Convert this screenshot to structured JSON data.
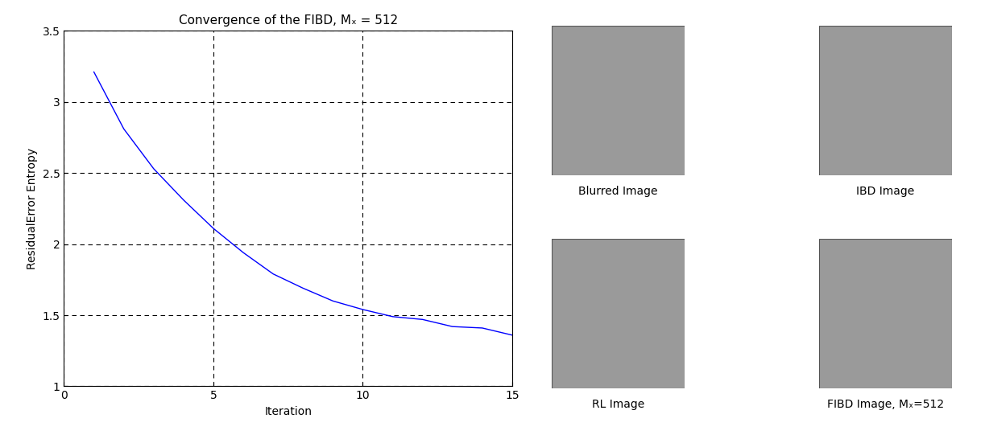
{
  "chart_data": {
    "type": "line",
    "title": "Convergence of the FIBD, Mₓ = 512",
    "x_label": "Iteration",
    "y_label": "ResidualError Entropy",
    "x": [
      1,
      2,
      3,
      4,
      5,
      6,
      7,
      8,
      9,
      10,
      11,
      12,
      13,
      14,
      15
    ],
    "values": [
      3.21,
      2.81,
      2.53,
      2.31,
      2.11,
      1.94,
      1.79,
      1.69,
      1.6,
      1.54,
      1.49,
      1.47,
      1.42,
      1.41,
      1.36
    ],
    "color": "#0000ff",
    "line_style": "solid",
    "xlim": [
      0,
      15
    ],
    "xticks": [
      0,
      5,
      10,
      15
    ],
    "ylim": [
      1,
      3.5
    ],
    "yticks": [
      1,
      1.5,
      2,
      2.5,
      3,
      3.5
    ],
    "grid": true
  },
  "image_panels": [
    {
      "caption": "Blurred Image"
    },
    {
      "caption": "IBD Image"
    },
    {
      "caption": "RL Image"
    },
    {
      "caption": "FIBD Image, Mₓ=512"
    }
  ]
}
